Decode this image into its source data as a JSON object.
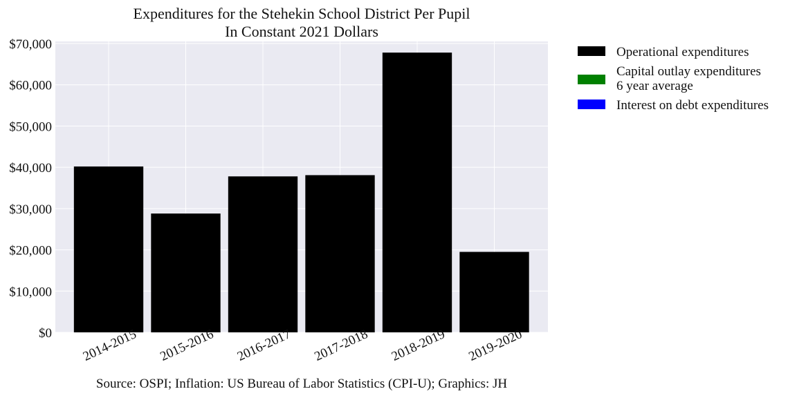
{
  "chart_data": {
    "type": "bar",
    "title": [
      "Expenditures for the Stehekin School District Per Pupil",
      "In Constant 2021 Dollars"
    ],
    "categories": [
      "2014-2015",
      "2015-2016",
      "2016-2017",
      "2017-2018",
      "2018-2019",
      "2019-2020"
    ],
    "series": [
      {
        "name": "Operational expenditures",
        "color": "#000000",
        "values": [
          40200,
          28800,
          37800,
          38100,
          67800,
          19500
        ]
      },
      {
        "name": [
          "Capital outlay expenditures",
          "6 year average"
        ],
        "color": "#008000",
        "values": [
          0,
          0,
          0,
          0,
          0,
          0
        ]
      },
      {
        "name": "Interest on debt expenditures",
        "color": "#0000ff",
        "values": [
          0,
          0,
          0,
          0,
          0,
          0
        ]
      }
    ],
    "ylim": [
      0,
      70500
    ],
    "yticks": [
      0,
      10000,
      20000,
      30000,
      40000,
      50000,
      60000,
      70000
    ],
    "ytick_labels": [
      "$0",
      "$10,000",
      "$20,000",
      "$30,000",
      "$40,000",
      "$50,000",
      "$60,000",
      "$70,000"
    ],
    "grid": true,
    "legend_position": "outside-right",
    "source": "Source: OSPI; Inflation: US Bureau of Labor Statistics (CPI-U); Graphics: JH",
    "plot_background": "#eaeaf2"
  }
}
